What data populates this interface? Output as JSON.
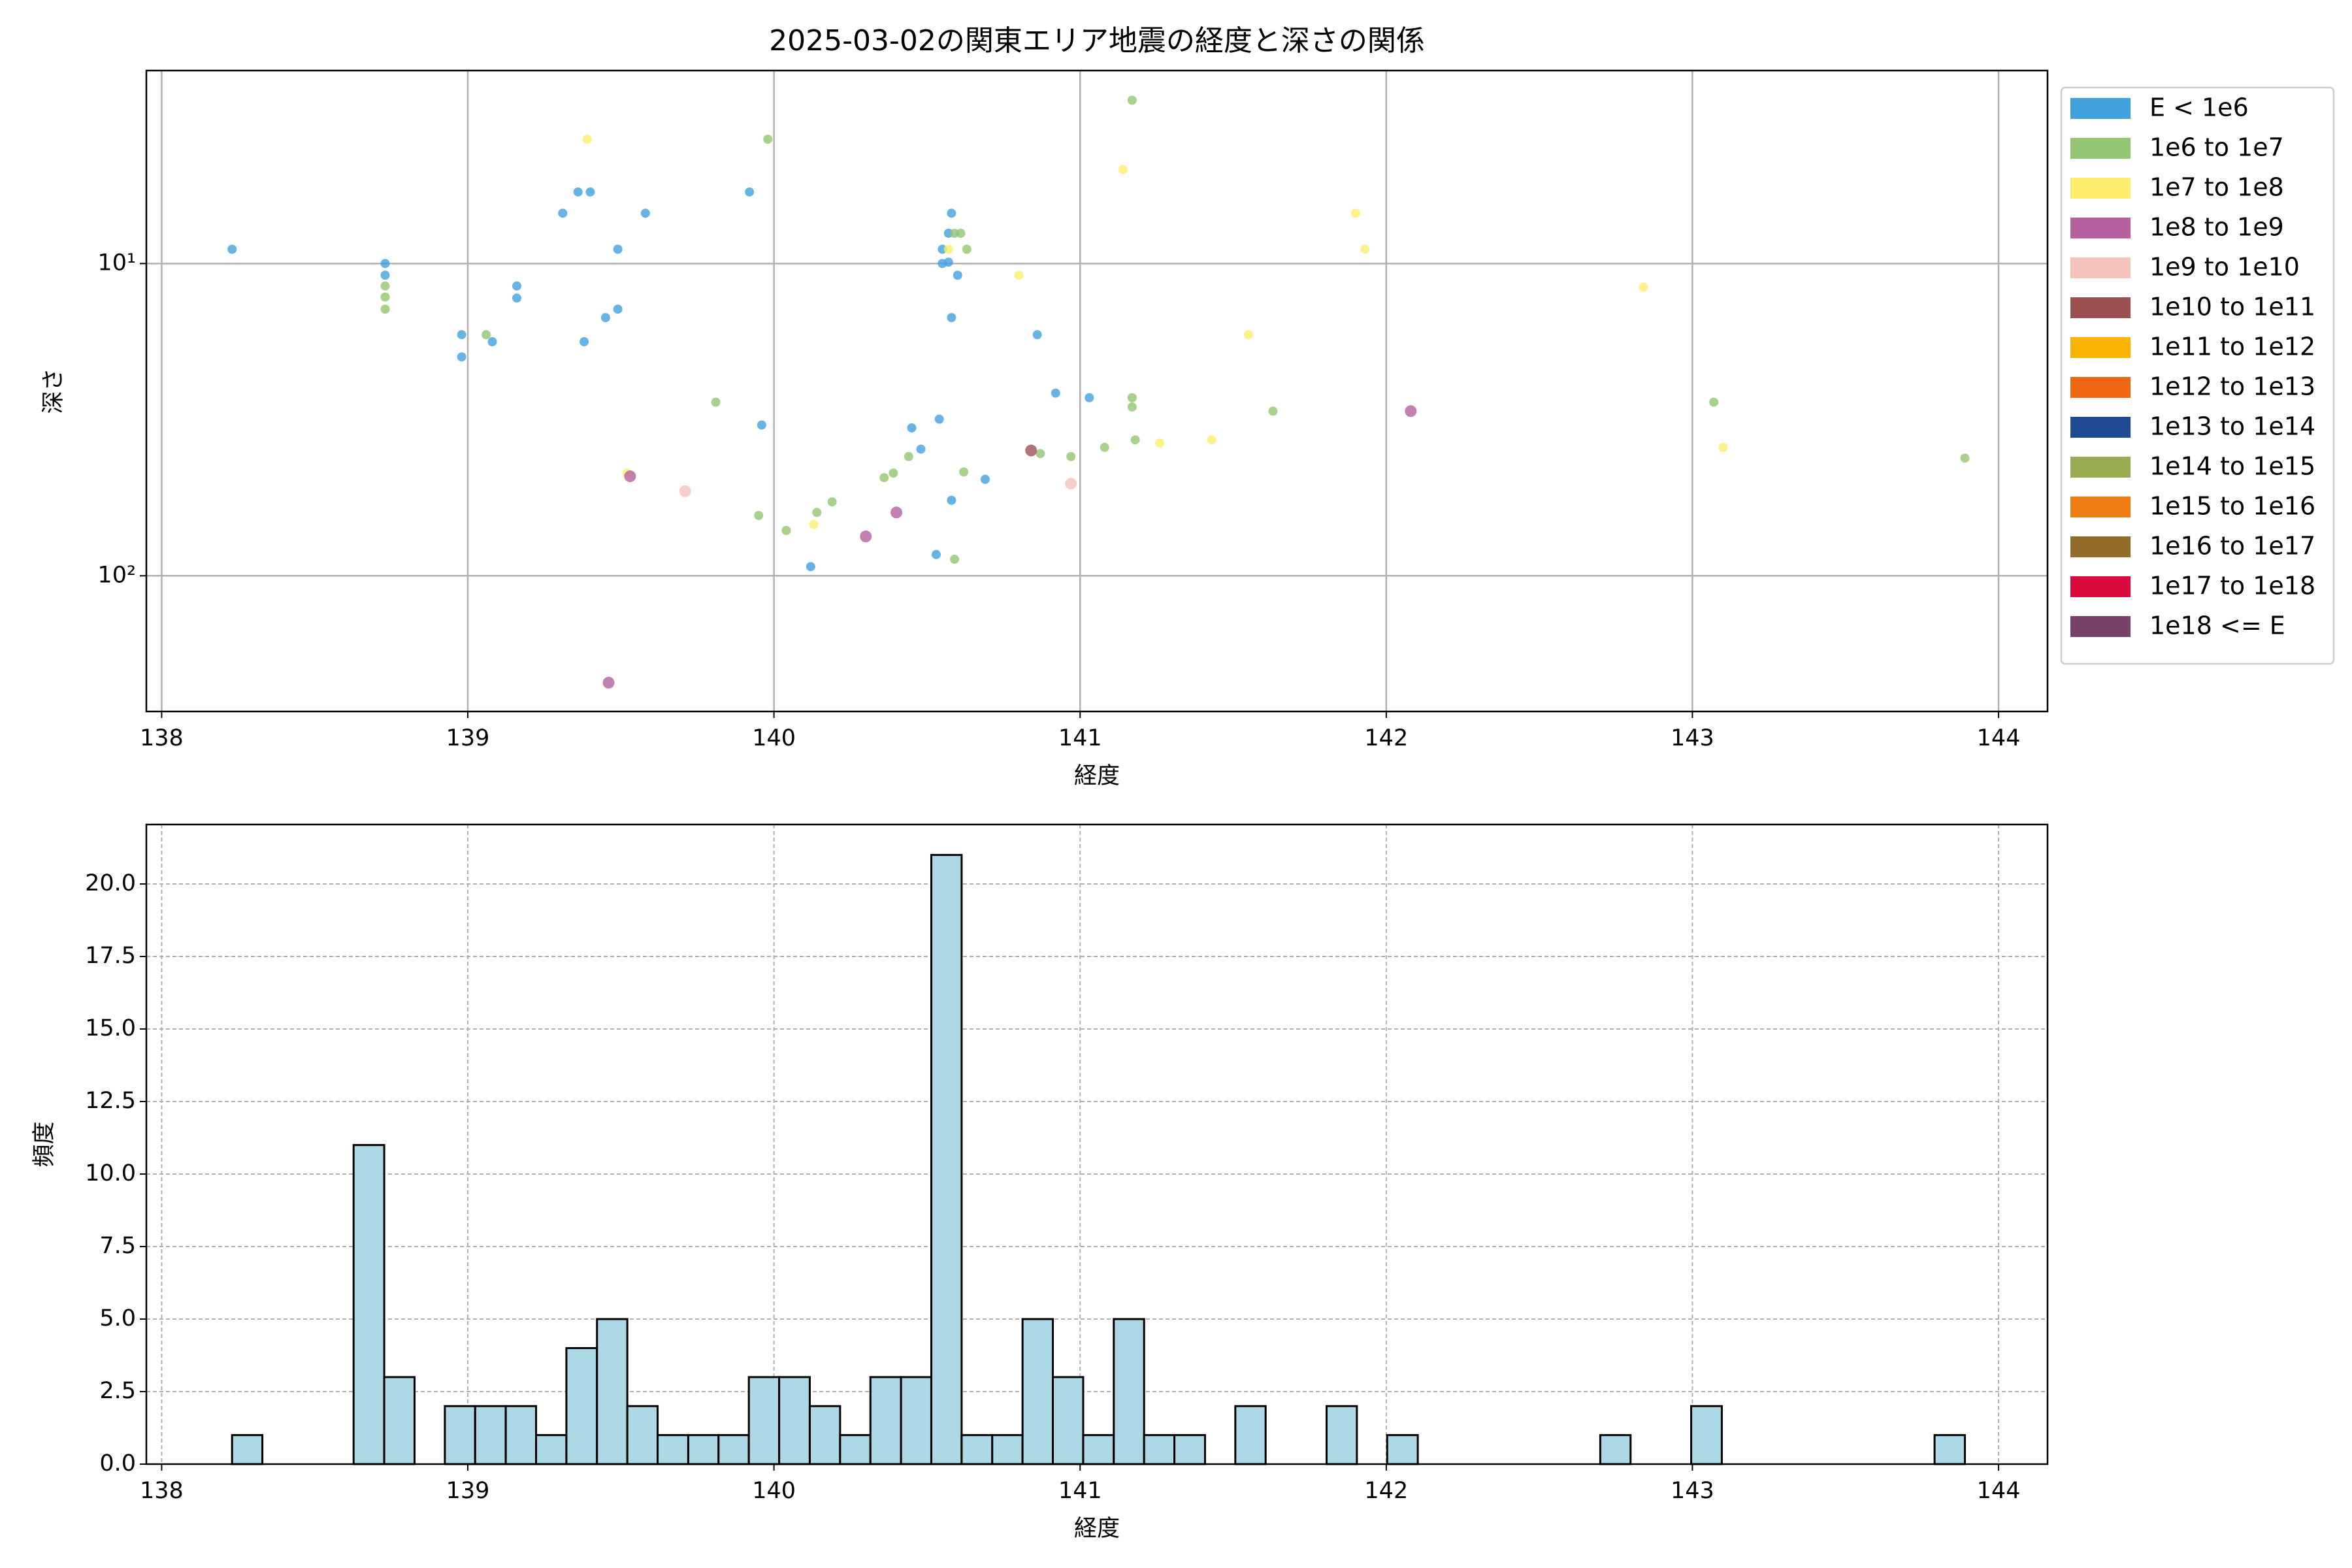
{
  "chart_data": [
    {
      "type": "scatter",
      "title": "2025-03-02の関東エリア地震の経度と深さの関係",
      "x_label": "経度",
      "y_label": "深さ",
      "yscale": "log",
      "grid": true,
      "legend": "right",
      "xlim": [
        137.95,
        144.16
      ],
      "ylim": [
        272,
        2.41
      ],
      "xticks": [
        138,
        139,
        140,
        141,
        142,
        143,
        144
      ],
      "yticks": [
        {
          "value": 10,
          "label": "10¹"
        },
        {
          "value": 100,
          "label": "10²"
        }
      ],
      "series": [
        {
          "name": "E < 1e6",
          "color": "#41a1dd",
          "x": [
            138.23,
            138.73,
            138.73,
            138.98,
            138.98,
            139.08,
            139.16,
            139.16,
            139.31,
            139.36,
            139.4,
            139.38,
            139.45,
            139.49,
            139.49,
            139.58,
            139.92,
            139.96,
            140.12,
            140.45,
            140.48,
            140.54,
            140.53,
            140.55,
            140.55,
            140.57,
            140.58,
            140.57,
            140.58,
            140.58,
            140.6,
            140.69,
            140.86,
            140.92,
            141.03
          ],
          "values": [
            9,
            10.9,
            10,
            16.9,
            19.9,
            17.8,
            11.8,
            12.9,
            6.9,
            5.9,
            5.9,
            17.8,
            14.9,
            9,
            14,
            6.9,
            5.9,
            32.9,
            93.5,
            33.6,
            39.3,
            31.5,
            85.5,
            9,
            10,
            8,
            6.9,
            9.9,
            57.3,
            14.9,
            10.9,
            49.1,
            16.9,
            26,
            26.9
          ]
        },
        {
          "name": "1e6 to 1e7",
          "color": "#93c572",
          "x": [
            138.73,
            138.73,
            138.73,
            139.06,
            139.81,
            139.98,
            139.95,
            140.04,
            140.14,
            140.19,
            140.36,
            140.39,
            140.44,
            140.62,
            140.59,
            140.59,
            140.61,
            140.63,
            140.87,
            140.97,
            141.08,
            141.17,
            141.17,
            141.17,
            141.18,
            141.63,
            143.07,
            143.89
          ],
          "values": [
            11.8,
            12.8,
            14,
            16.9,
            27.8,
            4,
            64.1,
            71.6,
            62.7,
            58,
            48.5,
            46.9,
            41.5,
            46.5,
            88.5,
            8,
            8,
            9,
            40.6,
            41.5,
            38.8,
            3,
            28.8,
            26.9,
            36.7,
            29.7,
            27.8,
            42
          ]
        },
        {
          "name": "1e7 to 1e8",
          "color": "#fded6b",
          "x": [
            139.39,
            139.52,
            140.13,
            140.57,
            140.8,
            141.14,
            141.26,
            141.43,
            141.55,
            141.9,
            141.93,
            142.84,
            143.1
          ],
          "values": [
            4,
            46.9,
            68.5,
            9,
            10.9,
            5,
            37.6,
            36.7,
            16.9,
            6.9,
            9,
            11.9,
            38.8
          ]
        },
        {
          "name": "1e8 to 1e9",
          "color": "#b5609f",
          "x": [
            139.53,
            139.46,
            140.3,
            140.4,
            142.08
          ],
          "values": [
            48,
            220,
            74.8,
            62.7,
            29.7
          ]
        },
        {
          "name": "1e9 to 1e10",
          "color": "#f5c2bc",
          "x": [
            139.71,
            140.97
          ],
          "values": [
            53.6,
            50.7
          ]
        },
        {
          "name": "1e10 to 1e11",
          "color": "#9c5151",
          "x": [
            140.84
          ],
          "values": [
            39.7
          ]
        },
        {
          "name": "1e11 to 1e12",
          "color": "#f8b400",
          "x": [],
          "values": []
        },
        {
          "name": "1e12 to 1e13",
          "color": "#ee6512",
          "x": [],
          "values": []
        },
        {
          "name": "1e13 to 1e14",
          "color": "#1e4a94",
          "x": [],
          "values": []
        },
        {
          "name": "1e14 to 1e15",
          "color": "#9aac52",
          "x": [],
          "values": []
        },
        {
          "name": "1e15 to 1e16",
          "color": "#ef7c13",
          "x": [],
          "values": []
        },
        {
          "name": "1e16 to 1e17",
          "color": "#936b2b",
          "x": [],
          "values": []
        },
        {
          "name": "1e17 to 1e18",
          "color": "#db0a3e",
          "x": [],
          "values": []
        },
        {
          "name": "1e18 <= E",
          "color": "#774169",
          "x": [],
          "values": []
        }
      ]
    },
    {
      "type": "histogram",
      "x_label": "経度",
      "y_label": "頻度",
      "color": "#add8e6",
      "edgecolor": "#000000",
      "grid": true,
      "grid_style": "dashed",
      "xlim": [
        137.95,
        144.16
      ],
      "ylim": [
        0,
        22.05
      ],
      "xticks": [
        138,
        139,
        140,
        141,
        142,
        143,
        144
      ],
      "yticks": [
        {
          "value": 0,
          "label": "0.0"
        },
        2.5,
        {
          "value": 5,
          "label": "5.0"
        },
        7.5,
        {
          "value": 10,
          "label": "10.0"
        },
        12.5,
        {
          "value": 15,
          "label": "15.0"
        },
        17.5,
        {
          "value": 20,
          "label": "20.0"
        }
      ],
      "bins": [
        138.23,
        138.329,
        138.429,
        138.528,
        138.627,
        138.727,
        138.826,
        138.925,
        139.024,
        139.124,
        139.223,
        139.322,
        139.422,
        139.521,
        139.62,
        139.72,
        139.819,
        139.918,
        140.017,
        140.117,
        140.216,
        140.315,
        140.415,
        140.514,
        140.613,
        140.713,
        140.812,
        140.911,
        141.01,
        141.11,
        141.209,
        141.308,
        141.408,
        141.507,
        141.606,
        141.706,
        141.805,
        141.904,
        142.003,
        142.103,
        142.202,
        142.301,
        142.401,
        142.5,
        142.599,
        142.699,
        142.798,
        142.897,
        142.996,
        143.096,
        143.195,
        143.294,
        143.394,
        143.493,
        143.592,
        143.692,
        143.791,
        143.89
      ],
      "values": [
        1,
        0,
        0,
        0,
        11,
        3,
        0,
        2,
        2,
        2,
        1,
        4,
        5,
        2,
        1,
        1,
        1,
        3,
        3,
        2,
        1,
        3,
        3,
        21,
        1,
        1,
        5,
        3,
        1,
        5,
        1,
        1,
        0,
        2,
        0,
        0,
        2,
        0,
        1,
        0,
        0,
        0,
        0,
        0,
        0,
        1,
        0,
        0,
        2,
        0,
        0,
        0,
        0,
        0,
        0,
        0,
        1
      ]
    }
  ]
}
